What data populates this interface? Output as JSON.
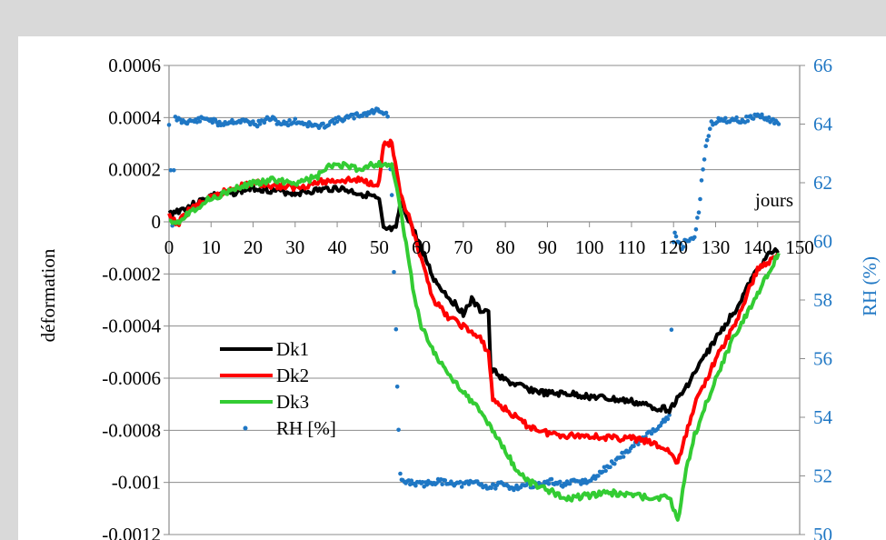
{
  "chart_data": {
    "type": "line",
    "xlabel": "jours",
    "ylabel": "déformation",
    "y2label": "RH (%)",
    "xlim": [
      0,
      150
    ],
    "ylim": [
      -0.0012,
      0.0006
    ],
    "y2lim": [
      50,
      66
    ],
    "x_ticks": [
      "0",
      "10",
      "20",
      "30",
      "40",
      "50",
      "60",
      "70",
      "80",
      "90",
      "100",
      "110",
      "120",
      "130",
      "140",
      "150"
    ],
    "y_ticks": [
      "0.0006",
      "0.0004",
      "0.0002",
      "0",
      "-0.0002",
      "-0.0004",
      "-0.0006",
      "-0.0008",
      "-0.001",
      "-0.0012"
    ],
    "y2_ticks": [
      "66",
      "64",
      "62",
      "60",
      "58",
      "56",
      "54",
      "52",
      "50"
    ],
    "grid": "horizontal",
    "legend_position": "lower-left",
    "series": [
      {
        "name": "Dk1",
        "axis": "left",
        "style": "line",
        "color": "#000000",
        "x": [
          0,
          5,
          10,
          15,
          20,
          25,
          30,
          35,
          40,
          45,
          48,
          50,
          51,
          54,
          55,
          57,
          60,
          63,
          66,
          70,
          72,
          74,
          76,
          76.5,
          78,
          80,
          85,
          90,
          95,
          100,
          105,
          110,
          115,
          119,
          122,
          125,
          130,
          135,
          140,
          143,
          145
        ],
        "y": [
          3e-05,
          6e-05,
          0.0001,
          0.00011,
          0.00013,
          0.00012,
          0.00011,
          0.00012,
          0.00013,
          0.00011,
          0.0001,
          8e-05,
          -3e-05,
          -3e-05,
          7e-05,
          1e-05,
          -0.0001,
          -0.00022,
          -0.00028,
          -0.00035,
          -0.0003,
          -0.00034,
          -0.00034,
          -0.00057,
          -0.00058,
          -0.00061,
          -0.00064,
          -0.00066,
          -0.00066,
          -0.00067,
          -0.00068,
          -0.00069,
          -0.00071,
          -0.00072,
          -0.00066,
          -0.00058,
          -0.00045,
          -0.00033,
          -0.00018,
          -0.00012,
          -0.00011
        ]
      },
      {
        "name": "Dk2",
        "axis": "left",
        "style": "line",
        "color": "#ff0000",
        "x": [
          0,
          2,
          5,
          10,
          15,
          20,
          25,
          30,
          35,
          40,
          45,
          48,
          50,
          51,
          52,
          53,
          55,
          57,
          60,
          63,
          66,
          70,
          74,
          76,
          77,
          80,
          85,
          90,
          95,
          100,
          105,
          110,
          115,
          119,
          121,
          125,
          130,
          135,
          140,
          145
        ],
        "y": [
          2e-05,
          -1e-05,
          5e-05,
          9e-05,
          0.00013,
          0.00015,
          0.00014,
          0.00013,
          0.00015,
          0.00016,
          0.00016,
          0.00015,
          0.00015,
          0.0003,
          0.0003,
          0.0003,
          0.0001,
          2e-05,
          -0.00015,
          -0.0003,
          -0.00036,
          -0.0004,
          -0.00045,
          -0.0005,
          -0.00068,
          -0.00072,
          -0.00078,
          -0.00081,
          -0.00082,
          -0.00082,
          -0.00083,
          -0.00083,
          -0.00085,
          -0.00088,
          -0.00093,
          -0.0007,
          -0.00053,
          -0.00038,
          -0.00018,
          -0.00013
        ]
      },
      {
        "name": "Dk3",
        "axis": "left",
        "style": "line",
        "color": "#33cc33",
        "x": [
          0,
          2,
          5,
          10,
          15,
          20,
          25,
          30,
          35,
          38,
          40,
          43,
          45,
          48,
          50,
          53,
          55,
          56,
          58,
          60,
          63,
          66,
          70,
          75,
          80,
          83,
          86,
          90,
          95,
          100,
          105,
          110,
          115,
          119,
          120,
          121,
          123,
          125,
          130,
          135,
          140,
          143,
          145
        ],
        "y": [
          1e-05,
          0.0,
          4e-05,
          9e-05,
          0.00012,
          0.00015,
          0.00016,
          0.00015,
          0.00017,
          0.00021,
          0.00022,
          0.00021,
          0.0002,
          0.00022,
          0.00022,
          0.00022,
          5e-05,
          -5e-05,
          -0.00025,
          -0.0004,
          -0.0005,
          -0.00058,
          -0.00065,
          -0.00075,
          -0.00088,
          -0.00096,
          -0.001,
          -0.00103,
          -0.00106,
          -0.00105,
          -0.00104,
          -0.00105,
          -0.00106,
          -0.00106,
          -0.0011,
          -0.00115,
          -0.00095,
          -0.00082,
          -0.0006,
          -0.00042,
          -0.00028,
          -0.00018,
          -0.00012
        ]
      },
      {
        "name": "RH [%]",
        "axis": "right",
        "style": "markers",
        "color": "#1f77c4",
        "x": [
          0,
          0.4,
          0.8,
          1.5,
          3,
          6,
          9,
          12,
          15,
          18,
          21,
          24,
          27,
          30,
          33,
          36,
          39,
          42,
          45,
          48,
          50,
          52,
          53,
          53.5,
          54,
          54.3,
          54.6,
          55,
          55.3,
          55.6,
          56,
          57,
          60,
          63,
          66,
          70,
          73,
          76,
          79,
          82,
          85,
          88,
          91,
          94,
          97,
          100,
          119,
          119.5,
          120,
          120.3,
          120.6,
          121,
          122,
          123,
          124,
          125,
          126,
          127,
          128,
          129,
          130,
          131,
          132,
          134,
          136,
          138,
          140,
          142,
          144,
          145
        ],
        "y": [
          64.0,
          62.5,
          60.5,
          64.2,
          64.1,
          64.1,
          64.2,
          64.0,
          64.1,
          64.1,
          64.0,
          64.2,
          64.0,
          64.1,
          64.0,
          63.9,
          64.1,
          64.2,
          64.3,
          64.4,
          64.5,
          64.3,
          61.5,
          59.0,
          57.0,
          55.0,
          53.5,
          52.0,
          51.9,
          51.8,
          51.8,
          51.8,
          51.7,
          51.8,
          51.8,
          51.7,
          51.8,
          51.6,
          51.7,
          51.6,
          51.7,
          51.7,
          51.8,
          51.7,
          51.8,
          51.8,
          54.0,
          57.0,
          60.0,
          60.3,
          60.1,
          60.0,
          59.8,
          60.1,
          60.0,
          60.2,
          61.0,
          62.5,
          63.5,
          64.0,
          64.1,
          64.2,
          64.1,
          64.2,
          64.1,
          64.2,
          64.3,
          64.2,
          64.1,
          64.0
        ]
      }
    ]
  }
}
